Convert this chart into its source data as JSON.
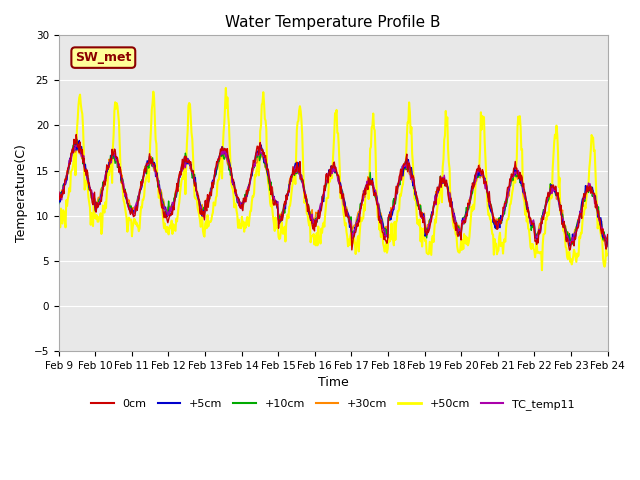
{
  "title": "Water Temperature Profile B",
  "xlabel": "Time",
  "ylabel": "Temperature(C)",
  "ylim": [
    -5,
    30
  ],
  "yticks": [
    -5,
    0,
    5,
    10,
    15,
    20,
    25,
    30
  ],
  "bg_color": "#ffffff",
  "plot_bg_color": "#e8e8e8",
  "legend_label": "SW_met",
  "legend_box_color": "#ffff99",
  "legend_box_edge": "#8B0000",
  "series_colors": {
    "0cm": "#cc0000",
    "+5cm": "#0000cc",
    "+10cm": "#00aa00",
    "+30cm": "#ff8800",
    "+50cm": "#ffff00",
    "TC_temp11": "#aa00aa"
  },
  "series_linewidths": {
    "0cm": 1.0,
    "+5cm": 1.0,
    "+10cm": 1.0,
    "+30cm": 1.0,
    "+50cm": 1.5,
    "TC_temp11": 1.0
  },
  "n_points": 720,
  "date_start": 9,
  "date_end": 24,
  "grid_color": "#ffffff",
  "tick_label_size": 7.5,
  "title_fontsize": 11
}
